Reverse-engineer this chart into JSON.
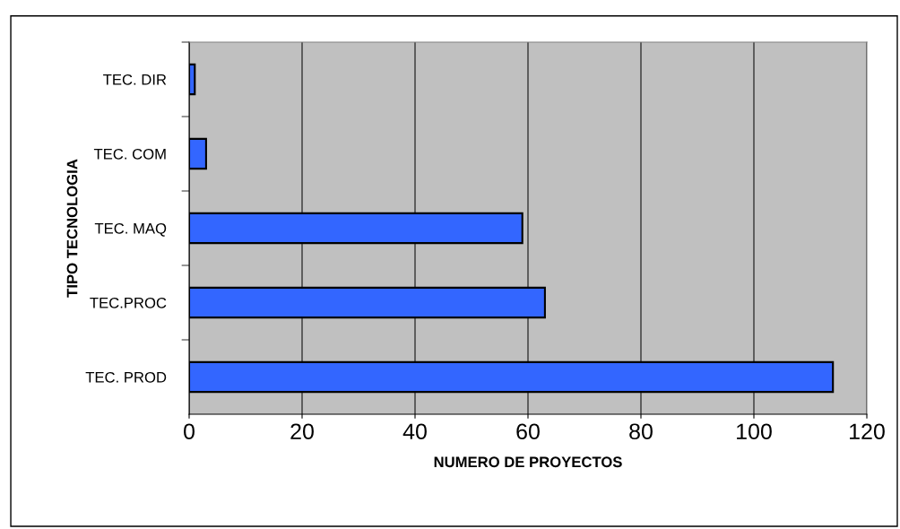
{
  "chart_data": {
    "type": "bar",
    "orientation": "horizontal",
    "categories": [
      "TEC. DIR",
      "TEC. COM",
      "TEC. MAQ",
      "TEC.PROC",
      "TEC. PROD"
    ],
    "values": [
      1,
      3,
      59,
      63,
      114
    ],
    "color": "#3366ff",
    "xlim": [
      0,
      120
    ],
    "xticks": [
      0,
      20,
      40,
      60,
      80,
      100,
      120
    ],
    "grid": "x",
    "xlabel": "NUMERO DE PROYECTOS",
    "ylabel": "TIPO TECNOLOGIA"
  }
}
